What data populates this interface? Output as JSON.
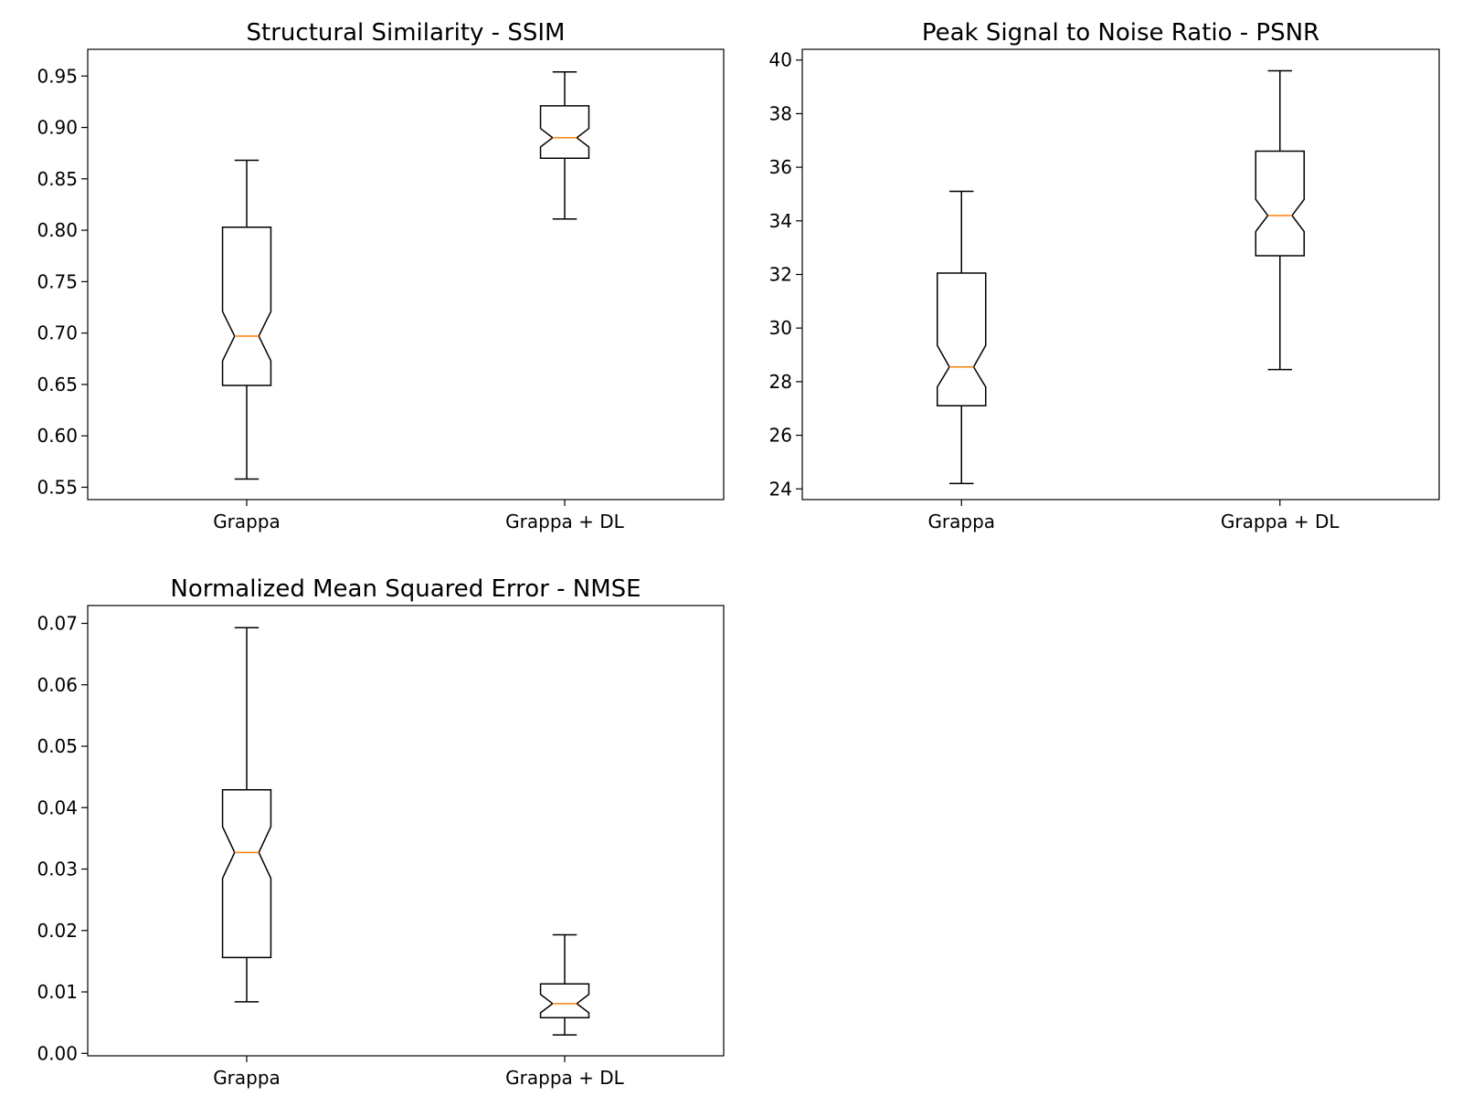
{
  "chart_data": [
    {
      "type": "boxplot",
      "notched": true,
      "title": "Structural Similarity - SSIM",
      "categories": [
        "Grappa",
        "Grappa + DL"
      ],
      "ylim": [
        0.538,
        0.976
      ],
      "yticks": [
        0.55,
        0.6,
        0.65,
        0.7,
        0.75,
        0.8,
        0.85,
        0.9,
        0.95
      ],
      "ytick_labels": [
        "0.55",
        "0.60",
        "0.65",
        "0.70",
        "0.75",
        "0.80",
        "0.85",
        "0.90",
        "0.95"
      ],
      "boxes": [
        {
          "whislo": 0.558,
          "q1": 0.649,
          "med": 0.697,
          "q3": 0.803,
          "whishi": 0.868,
          "notch_lo": 0.673,
          "notch_hi": 0.721
        },
        {
          "whislo": 0.811,
          "q1": 0.87,
          "med": 0.89,
          "q3": 0.921,
          "whishi": 0.954,
          "notch_lo": 0.881,
          "notch_hi": 0.899
        }
      ]
    },
    {
      "type": "boxplot",
      "notched": true,
      "title": "Peak Signal to Noise Ratio - PSNR",
      "categories": [
        "Grappa",
        "Grappa + DL"
      ],
      "ylim": [
        23.6,
        40.4
      ],
      "yticks": [
        24,
        26,
        28,
        30,
        32,
        34,
        36,
        38,
        40
      ],
      "ytick_labels": [
        "24",
        "26",
        "28",
        "30",
        "32",
        "34",
        "36",
        "38",
        "40"
      ],
      "boxes": [
        {
          "whislo": 24.2,
          "q1": 27.1,
          "med": 28.55,
          "q3": 32.05,
          "whishi": 35.1,
          "notch_lo": 27.8,
          "notch_hi": 29.35
        },
        {
          "whislo": 28.45,
          "q1": 32.7,
          "med": 34.2,
          "q3": 36.6,
          "whishi": 39.6,
          "notch_lo": 33.6,
          "notch_hi": 34.8
        }
      ]
    },
    {
      "type": "boxplot",
      "notched": true,
      "title": "Normalized Mean Squared Error - NMSE",
      "categories": [
        "Grappa",
        "Grappa + DL"
      ],
      "ylim": [
        -0.0004,
        0.0729
      ],
      "yticks": [
        0.0,
        0.01,
        0.02,
        0.03,
        0.04,
        0.05,
        0.06,
        0.07
      ],
      "ytick_labels": [
        "0.00",
        "0.01",
        "0.02",
        "0.03",
        "0.04",
        "0.05",
        "0.06",
        "0.07"
      ],
      "boxes": [
        {
          "whislo": 0.0084,
          "q1": 0.0156,
          "med": 0.0327,
          "q3": 0.0429,
          "whishi": 0.0693,
          "notch_lo": 0.0285,
          "notch_hi": 0.0369
        },
        {
          "whislo": 0.003,
          "q1": 0.0058,
          "med": 0.0081,
          "q3": 0.0113,
          "whishi": 0.0193,
          "notch_lo": 0.0066,
          "notch_hi": 0.0096
        }
      ]
    }
  ],
  "colors": {
    "box": "#000000",
    "median": "#ff7f0e",
    "background": "#ffffff"
  }
}
